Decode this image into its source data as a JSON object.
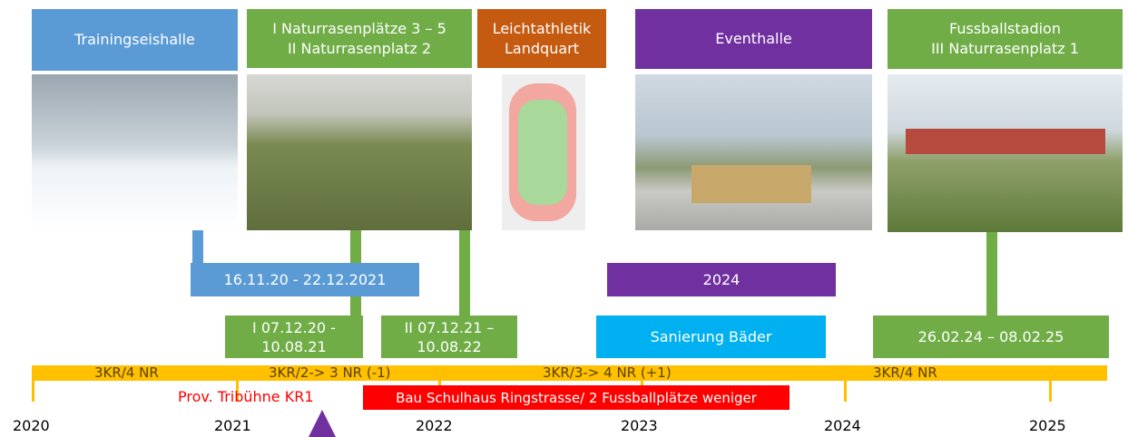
{
  "header_boxes": [
    {
      "lines": [
        "Trainingseishalle"
      ]
    },
    {
      "lines": [
        "I Naturrasenplätze 3 – 5",
        "II Naturrasenplatz 2"
      ]
    },
    {
      "lines": [
        "Leichtathletik",
        "Landquart"
      ]
    },
    {
      "lines": [
        "Eventhalle"
      ]
    },
    {
      "lines": [
        "Fussballstadion",
        "III Naturrasenplatz 1"
      ]
    }
  ],
  "date_boxes": [
    {
      "lines": [
        "16.11.20 - 22.12.2021"
      ]
    },
    {
      "lines": [
        "I 07.12.20 -",
        "10.08.21"
      ]
    },
    {
      "lines": [
        "II 07.12.21 –",
        "10.08.22"
      ]
    },
    {
      "lines": [
        "2024"
      ]
    },
    {
      "lines": [
        "Sanierung Bäder"
      ]
    },
    {
      "lines": [
        "26.02.24 – 08.02.25"
      ]
    }
  ],
  "timeline": {
    "segments": [
      "3KR/4 NR",
      "3KR/2-> 3 NR (-1)",
      "3KR/3-> 4 NR (+1)",
      "3KR/4 NR"
    ],
    "years": [
      "2020",
      "2021",
      "2022",
      "2023",
      "2024",
      "2025"
    ]
  },
  "notes": {
    "tribune": "Prov. Tribühne KR1",
    "construction": "Bau Schulhaus Ringstrasse/ 2 Fussballplätze weniger"
  }
}
